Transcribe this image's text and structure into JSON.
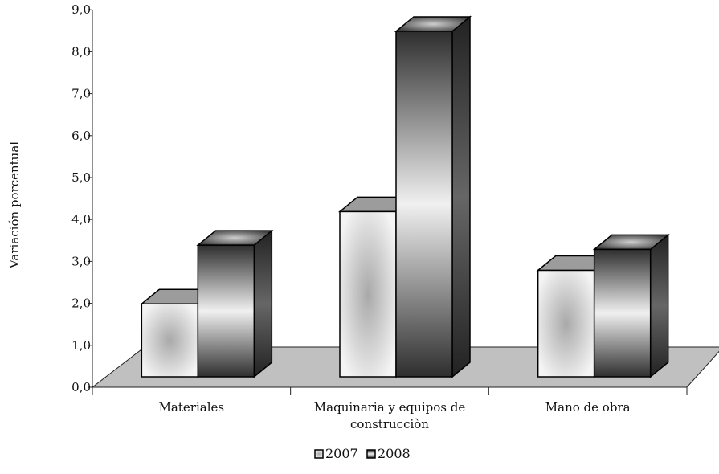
{
  "chart_data": {
    "type": "bar",
    "title": "",
    "ylabel": "Variación porcentual",
    "ylim": [
      0,
      9
    ],
    "yticks": [
      0,
      1,
      2,
      3,
      4,
      5,
      6,
      7,
      8,
      9
    ],
    "ytick_labels": [
      "0,0",
      "1,0",
      "2,0",
      "3,0",
      "4,0",
      "5,0",
      "6,0",
      "7,0",
      "8,0",
      "9,0"
    ],
    "categories": [
      [
        "Materiales"
      ],
      [
        "Maquinaria y equipos de",
        "construcciòn"
      ],
      [
        "Mano de obra"
      ]
    ],
    "series": [
      {
        "name": "2007",
        "values": [
          1.7,
          3.9,
          2.5
        ],
        "color": "#d4d4d4"
      },
      {
        "name": "2008",
        "values": [
          3.1,
          8.2,
          3.0
        ],
        "color": "#555555"
      }
    ],
    "legend_position": "bottom",
    "grid": false,
    "floor_color": "#c0c0c0"
  }
}
